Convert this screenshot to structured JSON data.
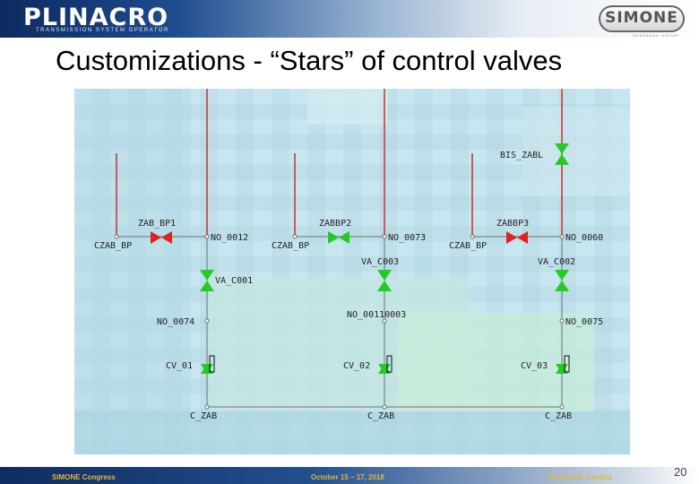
{
  "header": {
    "logo_left": "PLINACRO",
    "logo_left_sub": "TRANSMISSION  SYSTEM  OPERATOR",
    "logo_right": "SIMONE",
    "logo_right_sub": "RESEARCH GROUP"
  },
  "slide": {
    "title": "Customizations - “Stars” of control valves"
  },
  "diagram": {
    "labels": {
      "bis_zabl": "BIS_ZABL",
      "zab_bp1": "ZAB_BP1",
      "zabbp2": "ZABBP2",
      "zabbp3": "ZABBP3",
      "czab_bp_1": "CZAB_BP",
      "czab_bp_2": "CZAB_BP",
      "czab_bp_3": "CZAB_BP",
      "no_0012": "NO_0012",
      "no_0073": "NO_0073",
      "no_0060": "NO_0060",
      "va_c003": "VA_C003",
      "va_c002": "VA_C002",
      "va_c001": "VA_C001",
      "no_00110003": "NO_00110003",
      "no_0074": "NO_0074",
      "no_0075": "NO_0075",
      "cv_01": "CV_01",
      "cv_02": "CV_02",
      "cv_03": "CV_03",
      "c_zab_1": "C_ZAB",
      "c_zab_2": "C_ZAB",
      "c_zab_3": "C_ZAB"
    },
    "colors": {
      "pipe": "#cc2222",
      "pipe_gray": "#6f6f6f",
      "valve_open": "#22cc22",
      "valve_closed": "#dd2222",
      "label": "#222222"
    }
  },
  "footer": {
    "congress": "SIMONE Congress",
    "date": "October 15 – 17, 2018",
    "location": "Dubrovnik, Croatia",
    "page_number": "20"
  }
}
